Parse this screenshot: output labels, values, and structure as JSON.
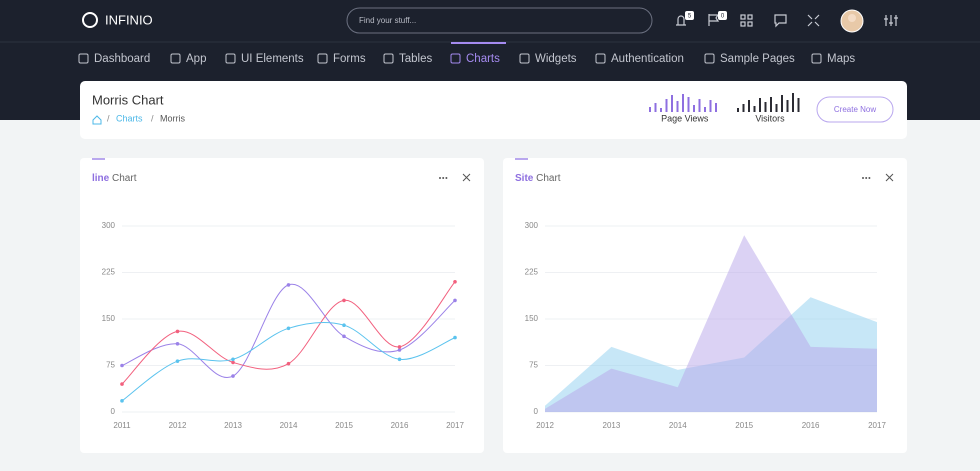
{
  "header": {
    "brand": "INFINIO",
    "search_placeholder": "Find your stuff...",
    "badges": [
      "5",
      "0"
    ]
  },
  "nav": {
    "items": [
      "Dashboard",
      "App",
      "UI Elements",
      "Forms",
      "Tables",
      "Charts",
      "Widgets",
      "Authentication",
      "Sample Pages",
      "Maps"
    ],
    "active": 5
  },
  "page_header": {
    "title": "Morris Chart",
    "breadcrumb": [
      "Charts",
      "Morris"
    ],
    "separator": "/",
    "button": "Create Now",
    "stats": [
      {
        "label": "Page Views",
        "color": "#8e6fe0",
        "values": [
          5,
          9,
          4,
          13,
          17,
          11,
          18,
          15,
          7,
          13,
          5,
          12,
          9
        ]
      },
      {
        "label": "Visitors",
        "color": "#2b2b33",
        "values": [
          4,
          8,
          12,
          6,
          14,
          10,
          15,
          8,
          17,
          12,
          19,
          14
        ]
      }
    ]
  },
  "chart_data": [
    {
      "type": "line",
      "title_accent": "line",
      "title": "Chart",
      "x": [
        2011,
        2012,
        2013,
        2014,
        2015,
        2016,
        2017
      ],
      "xlim": [
        2011,
        2017
      ],
      "xticks": [
        2011,
        2012,
        2013,
        2014,
        2015,
        2016,
        2017
      ],
      "ylim": [
        0,
        300
      ],
      "yticks": [
        0,
        75,
        150,
        225,
        300
      ],
      "grid": true,
      "series": [
        {
          "color": "#9b82e8",
          "values": [
            75,
            110,
            58,
            205,
            122,
            100,
            180
          ]
        },
        {
          "color": "#f2607e",
          "values": [
            45,
            130,
            80,
            78,
            180,
            105,
            210
          ]
        },
        {
          "color": "#5bc3ee",
          "values": [
            18,
            82,
            85,
            135,
            140,
            85,
            120
          ]
        }
      ]
    },
    {
      "type": "area",
      "title_accent": "Site",
      "title": "Chart",
      "x": [
        2012,
        2013,
        2014,
        2015,
        2016,
        2017
      ],
      "xlim": [
        2012,
        2017
      ],
      "xticks": [
        2012,
        2013,
        2014,
        2015,
        2016,
        2017
      ],
      "ylim": [
        0,
        300
      ],
      "yticks": [
        0,
        75,
        150,
        225,
        300
      ],
      "grid": true,
      "series": [
        {
          "color": "#8fd0f0",
          "values": [
            10,
            105,
            68,
            88,
            185,
            145
          ]
        },
        {
          "color": "#b7a6ea",
          "values": [
            5,
            70,
            40,
            285,
            105,
            102
          ]
        }
      ]
    }
  ]
}
